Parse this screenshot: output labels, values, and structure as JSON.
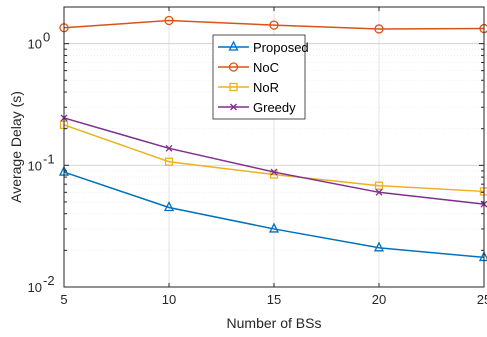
{
  "chart_data": {
    "type": "line",
    "xlabel": "Number of BSs",
    "ylabel": "Average Delay (s)",
    "x": [
      5,
      10,
      15,
      20,
      25
    ],
    "xlim": [
      5,
      25
    ],
    "ylim": [
      0.01,
      2
    ],
    "yscale": "log",
    "grid": true,
    "legend_position": "top-center",
    "x_ticks": [
      "5",
      "10",
      "15",
      "20",
      "25"
    ],
    "y_ticks": [
      {
        "base": "10",
        "exp": "-2"
      },
      {
        "base": "10",
        "exp": "-1"
      },
      {
        "base": "10",
        "exp": "0"
      }
    ],
    "series": [
      {
        "name": "Proposed",
        "marker": "triangle",
        "color": "#0072BD",
        "values": [
          0.088,
          0.045,
          0.03,
          0.021,
          0.0175
        ]
      },
      {
        "name": "NoC",
        "marker": "circle",
        "color": "#D95319",
        "values": [
          1.35,
          1.55,
          1.42,
          1.32,
          1.33
        ]
      },
      {
        "name": "NoR",
        "marker": "square",
        "color": "#EDB120",
        "values": [
          0.215,
          0.107,
          0.084,
          0.068,
          0.061
        ]
      },
      {
        "name": "Greedy",
        "marker": "x",
        "color": "#7E2F8E",
        "values": [
          0.245,
          0.138,
          0.088,
          0.06,
          0.048
        ]
      }
    ]
  }
}
